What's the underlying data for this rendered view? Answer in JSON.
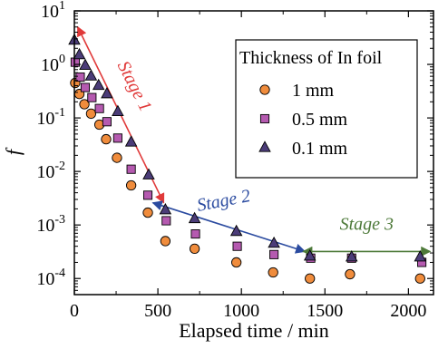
{
  "chart_data": {
    "type": "scatter",
    "title": "",
    "xlabel": "Elapsed time / min",
    "ylabel": "f",
    "x_range": [
      0,
      2150
    ],
    "y_scale": "log",
    "y_range": [
      5e-05,
      10
    ],
    "x_ticks": [
      {
        "value": 0,
        "label": "0"
      },
      {
        "value": 500,
        "label": "500"
      },
      {
        "value": 1000,
        "label": "1000"
      },
      {
        "value": 1500,
        "label": "1500"
      },
      {
        "value": 2000,
        "label": "2000"
      }
    ],
    "y_ticks": [
      {
        "value": 0.0001,
        "base": "10",
        "exp": "-4"
      },
      {
        "value": 0.001,
        "base": "10",
        "exp": "-3"
      },
      {
        "value": 0.01,
        "base": "10",
        "exp": "-2"
      },
      {
        "value": 0.1,
        "base": "10",
        "exp": "-1"
      },
      {
        "value": 1,
        "base": "10",
        "exp": "0"
      },
      {
        "value": 10,
        "base": "10",
        "exp": "1"
      }
    ],
    "legend": {
      "title": "Thickness of In foil",
      "position": "top-right"
    },
    "series": [
      {
        "name": "1 mm",
        "marker": "circle",
        "color": "#F08C3C",
        "x": [
          5,
          30,
          60,
          100,
          150,
          190,
          255,
          340,
          440,
          545,
          720,
          970,
          1190,
          1410,
          1650,
          2070
        ],
        "y": [
          0.45,
          0.28,
          0.18,
          0.12,
          0.075,
          0.04,
          0.018,
          0.0055,
          0.0017,
          0.0005,
          0.00036,
          0.0002,
          0.00013,
          0.0001,
          0.00012,
          0.0001
        ]
      },
      {
        "name": "0.5 mm",
        "marker": "square",
        "color": "#B55AB0",
        "x": [
          5,
          35,
          65,
          105,
          150,
          195,
          260,
          340,
          440,
          550,
          725,
          975,
          1195,
          1415,
          1660,
          2080
        ],
        "y": [
          1.1,
          0.58,
          0.37,
          0.24,
          0.15,
          0.085,
          0.042,
          0.011,
          0.0036,
          0.0012,
          0.00068,
          0.0004,
          0.00028,
          0.00024,
          0.00024,
          0.0002
        ]
      },
      {
        "name": "0.1 mm",
        "marker": "triangle",
        "color": "#4B3C78",
        "x": [
          0,
          30,
          65,
          100,
          145,
          195,
          260,
          340,
          445,
          545,
          720,
          970,
          1195,
          1410,
          1660,
          2070
        ],
        "y": [
          2.8,
          1.5,
          0.95,
          0.6,
          0.4,
          0.28,
          0.13,
          0.035,
          0.0085,
          0.0019,
          0.0013,
          0.00075,
          0.00045,
          0.00026,
          0.00025,
          0.00025
        ]
      }
    ],
    "annotations": [
      {
        "label": "Stage 1",
        "color": "#E03A3A",
        "arrow_from": {
          "x": 20,
          "y": 5
        },
        "arrow_to": {
          "x": 535,
          "y": 0.0026
        },
        "text_at": {
          "x": 330,
          "y": 0.35
        },
        "text_rotation": 63
      },
      {
        "label": "Stage 2",
        "color": "#2B4BA0",
        "arrow_from": {
          "x": 470,
          "y": 0.0026
        },
        "arrow_to": {
          "x": 1380,
          "y": 0.00032
        },
        "text_at": {
          "x": 900,
          "y": 0.00225
        },
        "text_rotation": -11
      },
      {
        "label": "Stage 3",
        "color": "#4E7A3A",
        "arrow_from": {
          "x": 1370,
          "y": 0.00032
        },
        "arrow_to": {
          "x": 2130,
          "y": 0.00032
        },
        "text_at": {
          "x": 1750,
          "y": 0.00082
        },
        "text_rotation": 0
      }
    ]
  }
}
